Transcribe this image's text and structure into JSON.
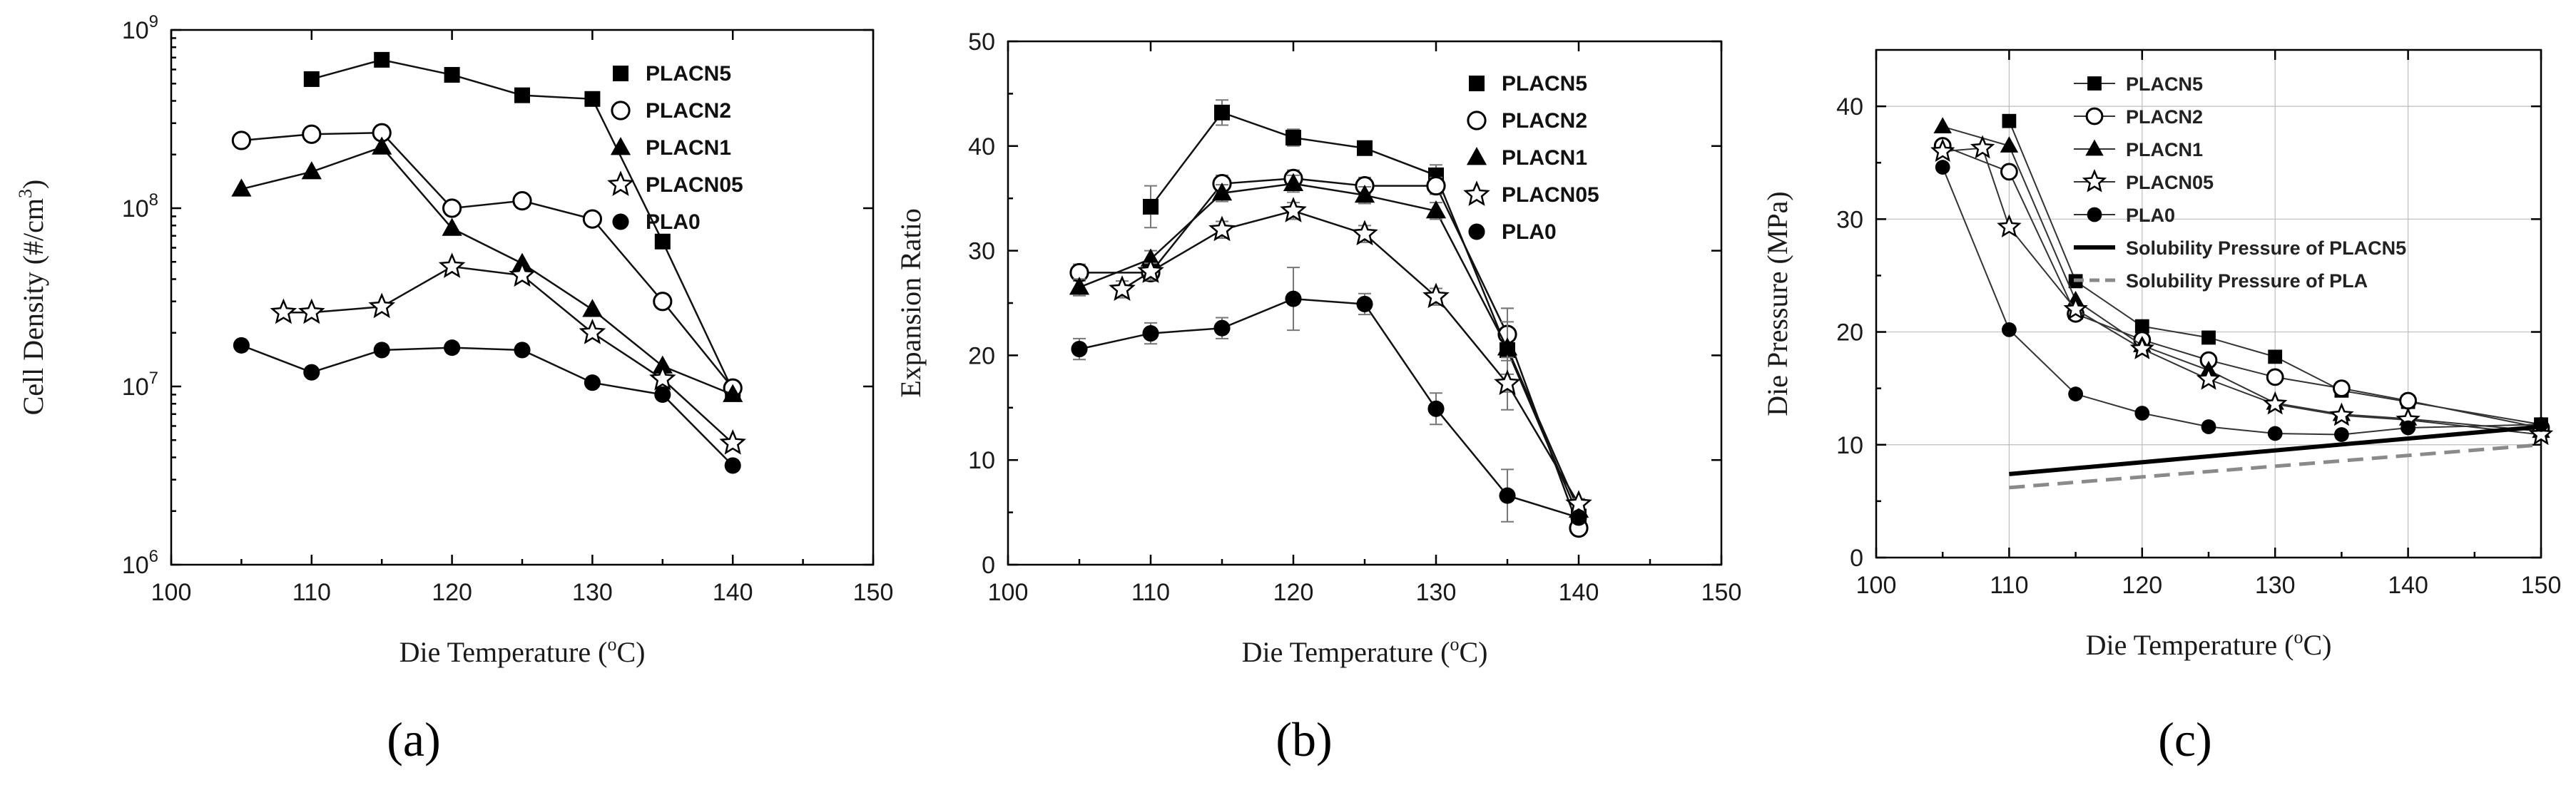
{
  "panel_labels": [
    "(a)",
    "(b)",
    "(c)"
  ],
  "chart_data": [
    {
      "type": "line",
      "id": "a",
      "xlabel": "Die Temperature (oC)",
      "ylabel": "Cell Density (#/cm3)",
      "yscale": "log",
      "xlim": [
        100,
        150
      ],
      "ylim": [
        1000000,
        1000000000
      ],
      "xticks": [
        "100",
        "110",
        "120",
        "130",
        "140",
        "150"
      ],
      "yticks": [
        "10^6",
        "10^7",
        "10^8",
        "10^9"
      ],
      "series": [
        {
          "name": "PLACN5",
          "marker": "square",
          "x": [
            110,
            115,
            120,
            125,
            130,
            135,
            140
          ],
          "y": [
            530000000,
            680000000,
            560000000,
            430000000,
            410000000,
            65000000,
            9500000
          ]
        },
        {
          "name": "PLACN2",
          "marker": "circle-open",
          "x": [
            105,
            110,
            115,
            120,
            125,
            130,
            135,
            140
          ],
          "y": [
            240000000,
            260000000,
            265000000,
            100000000,
            110000000,
            87000000,
            30000000,
            9800000
          ]
        },
        {
          "name": "PLACN1",
          "marker": "triangle",
          "x": [
            105,
            110,
            115,
            120,
            125,
            130,
            135,
            140
          ],
          "y": [
            128000000,
            160000000,
            220000000,
            77000000,
            49000000,
            27000000,
            13000000,
            9000000
          ]
        },
        {
          "name": "PLACN05",
          "marker": "star-open",
          "x": [
            108,
            110,
            115,
            120,
            125,
            130,
            135,
            140
          ],
          "y": [
            26000000,
            26000000,
            28000000,
            47000000,
            42000000,
            20000000,
            11000000,
            4800000
          ]
        },
        {
          "name": "PLA0",
          "marker": "circle",
          "x": [
            105,
            110,
            115,
            120,
            125,
            130,
            135,
            140
          ],
          "y": [
            17000000,
            12000000,
            16000000,
            16500000,
            16000000,
            10500000,
            9000000,
            3600000
          ]
        }
      ]
    },
    {
      "type": "line",
      "id": "b",
      "xlabel": "Die Temperature (oC)",
      "ylabel": "Expansion Ratio",
      "xlim": [
        100,
        150
      ],
      "ylim": [
        0,
        50
      ],
      "xticks": [
        "100",
        "110",
        "120",
        "130",
        "140",
        "150"
      ],
      "yticks": [
        "0",
        "10",
        "20",
        "30",
        "40",
        "50"
      ],
      "series": [
        {
          "name": "PLACN5",
          "marker": "square",
          "x": [
            110,
            115,
            120,
            125,
            130,
            135,
            140
          ],
          "y": [
            34.2,
            43.2,
            40.8,
            39.8,
            37.2,
            20.5,
            4.6
          ],
          "err": [
            2.0,
            1.2,
            0.8,
            0.6,
            1.0,
            4.0,
            0.5
          ]
        },
        {
          "name": "PLACN2",
          "marker": "circle-open",
          "x": [
            105,
            110,
            115,
            120,
            125,
            130,
            135,
            140
          ],
          "y": [
            27.9,
            27.9,
            36.4,
            36.9,
            36.2,
            36.2,
            22.0,
            3.5
          ],
          "err": [
            0.8,
            0.8,
            0.8,
            0.8,
            0.8,
            0.8,
            2.5,
            0.4
          ]
        },
        {
          "name": "PLACN1",
          "marker": "triangle",
          "x": [
            105,
            110,
            115,
            120,
            125,
            130,
            135,
            140
          ],
          "y": [
            26.5,
            29.2,
            35.5,
            36.4,
            35.3,
            33.8,
            20.7,
            5.2
          ],
          "err": [
            0.8,
            0.8,
            0.8,
            0.8,
            0.8,
            0.8,
            2.5,
            0.5
          ]
        },
        {
          "name": "PLACN05",
          "marker": "star-open",
          "x": [
            108,
            110,
            115,
            120,
            125,
            130,
            135,
            140
          ],
          "y": [
            26.3,
            28.0,
            32.0,
            33.8,
            31.6,
            25.6,
            17.3,
            5.8
          ],
          "err": [
            0.8,
            0.8,
            0.8,
            0.8,
            0.8,
            0.8,
            2.5,
            0.5
          ]
        },
        {
          "name": "PLA0",
          "marker": "circle",
          "x": [
            105,
            110,
            115,
            120,
            125,
            130,
            135,
            140
          ],
          "y": [
            20.6,
            22.1,
            22.6,
            25.4,
            24.9,
            14.9,
            6.6,
            4.5
          ],
          "err": [
            1.0,
            1.0,
            1.0,
            3.0,
            1.0,
            1.5,
            2.5,
            0.5
          ]
        }
      ]
    },
    {
      "type": "line",
      "id": "c",
      "xlabel": "Die Temperature (oC)",
      "ylabel": "Die Pressure (MPa)",
      "xlim": [
        100,
        150
      ],
      "ylim": [
        0,
        45
      ],
      "grid": true,
      "xticks": [
        "100",
        "110",
        "120",
        "130",
        "140",
        "150"
      ],
      "yticks": [
        "0",
        "10",
        "20",
        "30",
        "40"
      ],
      "series": [
        {
          "name": "PLACN5",
          "marker": "square",
          "x": [
            110,
            115,
            120,
            125,
            130,
            135,
            140,
            150
          ],
          "y": [
            38.7,
            24.5,
            20.5,
            19.5,
            17.8,
            14.8,
            13.8,
            11.8
          ]
        },
        {
          "name": "PLACN2",
          "marker": "circle-open",
          "x": [
            105,
            110,
            115,
            120,
            125,
            130,
            135,
            140,
            150
          ],
          "y": [
            36.5,
            34.2,
            21.6,
            19.3,
            17.5,
            16.0,
            15.0,
            13.9,
            11.5
          ]
        },
        {
          "name": "PLACN1",
          "marker": "triangle",
          "x": [
            105,
            110,
            115,
            120,
            125,
            130,
            135,
            140,
            150
          ],
          "y": [
            38.2,
            36.5,
            22.8,
            18.8,
            16.6,
            13.7,
            12.7,
            12.3,
            11.2
          ]
        },
        {
          "name": "PLACN05",
          "marker": "star-open",
          "x": [
            105,
            108,
            110,
            115,
            120,
            125,
            130,
            135,
            140,
            150
          ],
          "y": [
            36.0,
            36.3,
            29.3,
            22.0,
            18.5,
            15.8,
            13.6,
            12.6,
            12.2,
            10.9
          ]
        },
        {
          "name": "PLA0",
          "marker": "circle",
          "x": [
            105,
            110,
            115,
            120,
            125,
            130,
            135,
            140,
            150
          ],
          "y": [
            34.6,
            20.2,
            14.5,
            12.8,
            11.6,
            11.0,
            10.9,
            11.5,
            11.8
          ]
        },
        {
          "name": "Solubility Pressure of PLACN5",
          "style": "solid-thick",
          "x": [
            110,
            150
          ],
          "y": [
            7.4,
            11.6
          ]
        },
        {
          "name": "Solubility Pressure of PLA",
          "style": "dashed-gray",
          "x": [
            110,
            150
          ],
          "y": [
            6.2,
            10.0
          ]
        }
      ]
    }
  ]
}
